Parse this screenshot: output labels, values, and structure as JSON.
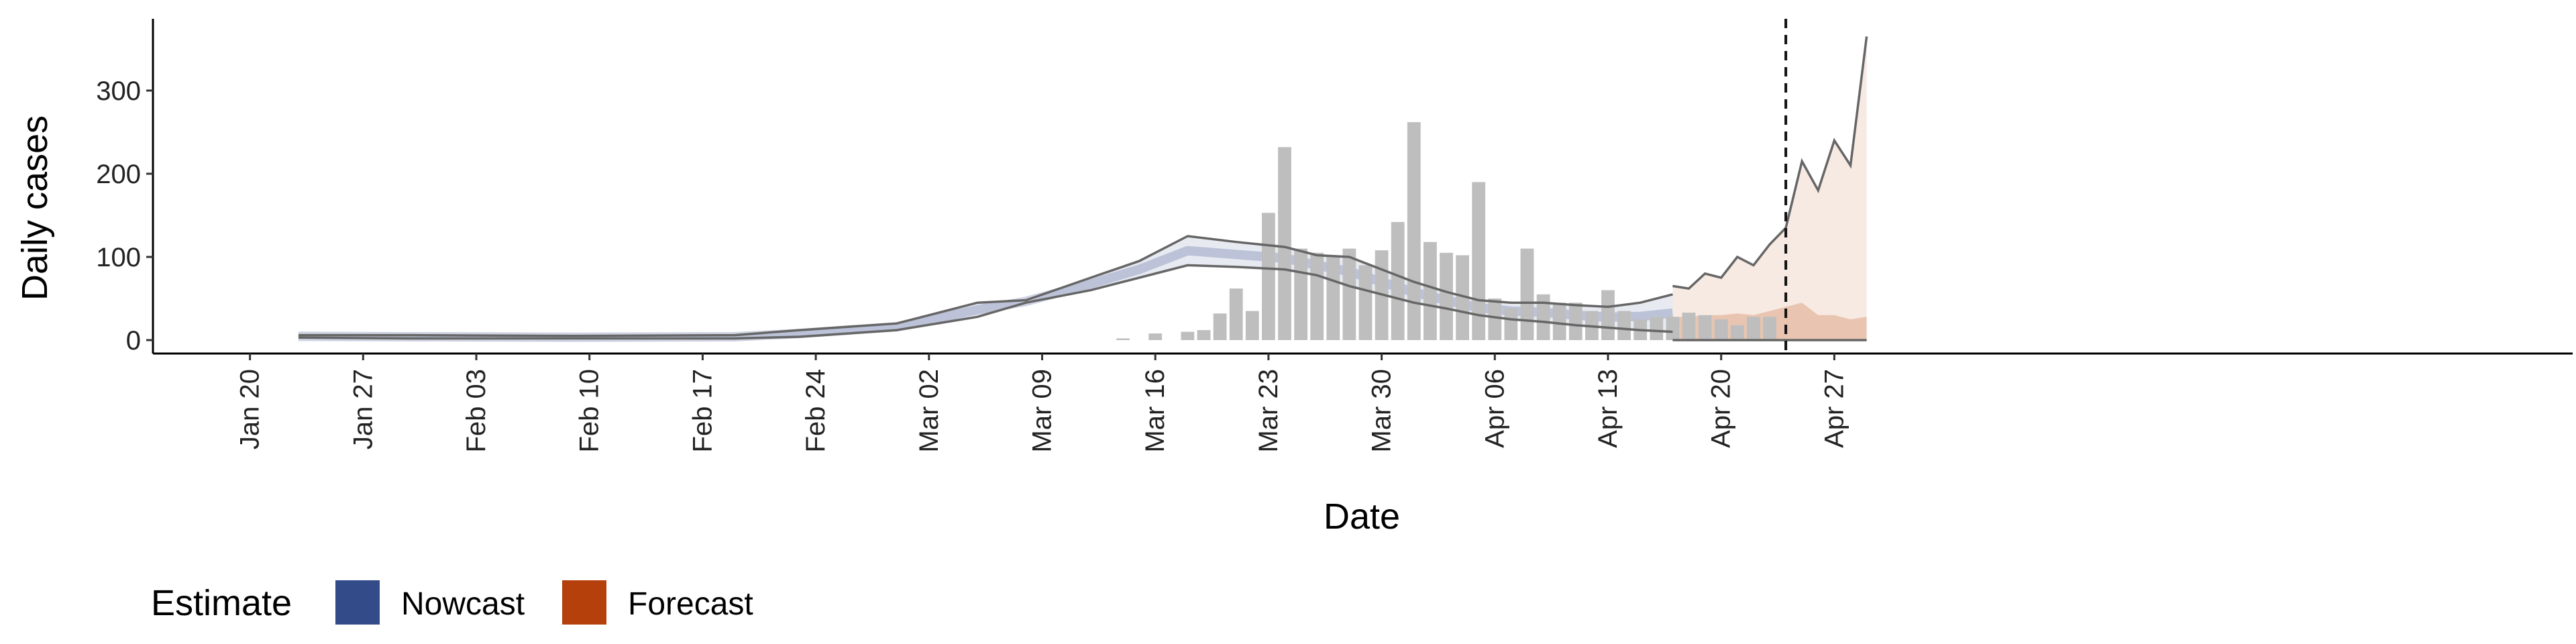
{
  "chart_data": {
    "type": "bar",
    "xlabel": "Date",
    "ylabel": "Daily cases",
    "x_ticks": [
      "Jan 20",
      "Jan 27",
      "Feb 03",
      "Feb 10",
      "Feb 17",
      "Feb 24",
      "Mar 02",
      "Mar 09",
      "Mar 16",
      "Mar 23",
      "Mar 30",
      "Apr 06",
      "Apr 13",
      "Apr 20",
      "Apr 27"
    ],
    "y_ticks": [
      0,
      100,
      200,
      300
    ],
    "ylim": [
      -20,
      385
    ],
    "x_range_days": [
      -6,
      102
    ],
    "date_origin": "Jan 20",
    "grid": false,
    "legend": {
      "title": "Estimate",
      "position": "bottom-left",
      "items": [
        {
          "label": "Nowcast",
          "color": "#344b8a"
        },
        {
          "label": "Forecast",
          "color": "#b5400c"
        }
      ]
    },
    "colors": {
      "bars": "#bebebe",
      "nowcast_band": "#3b4f8f",
      "forecast_band": "#c0561b",
      "outline": "#666666",
      "vline": "#111111"
    },
    "reference_line_day": 95,
    "observed_cases": {
      "day": [
        3,
        8,
        10,
        13,
        16,
        18,
        20,
        26,
        28,
        33,
        34,
        37,
        39,
        40,
        41,
        43,
        44,
        47,
        48,
        50,
        51,
        54,
        56,
        58,
        59,
        60,
        61,
        62,
        63,
        64,
        65,
        66,
        67,
        68,
        69,
        70,
        71,
        72,
        73,
        74,
        75,
        76,
        77,
        78,
        79,
        80,
        81,
        82,
        83,
        84,
        85,
        86,
        87,
        88,
        89,
        90,
        91,
        92,
        93,
        94
      ],
      "value": [
        4,
        5,
        3,
        4,
        4,
        7,
        3,
        3,
        3,
        2,
        2,
        2,
        4,
        4,
        4,
        3,
        3,
        4,
        2,
        4,
        2,
        4,
        3,
        1,
        2,
        3,
        2,
        2,
        2,
        2,
        1,
        3,
        3,
        6,
        2,
        2,
        3,
        2,
        5,
        4,
        5,
        8,
        6,
        2,
        2,
        4,
        2,
        2,
        4,
        3,
        2,
        8,
        1,
        2,
        8,
        10,
        4,
        2,
        12,
        6
      ]
    },
    "bars": {
      "day": [
        54,
        56,
        58,
        59,
        60,
        61,
        62,
        63,
        64,
        65,
        66,
        67,
        68,
        69,
        70,
        71,
        72,
        73,
        74,
        75,
        76,
        77,
        78,
        79,
        80,
        81,
        82,
        83,
        84,
        85,
        86,
        87,
        88,
        89,
        90,
        91,
        92,
        93,
        94
      ],
      "value": [
        2,
        8,
        10,
        12,
        32,
        62,
        35,
        153,
        232,
        110,
        105,
        102,
        110,
        90,
        108,
        142,
        262,
        118,
        105,
        102,
        190,
        50,
        38,
        110,
        55,
        45,
        45,
        35,
        60,
        35,
        25,
        28,
        28,
        33,
        30,
        25,
        18,
        28,
        28
      ]
    },
    "nowcast": {
      "day": [
        3,
        10,
        20,
        30,
        34,
        40,
        45,
        48,
        52,
        55,
        58,
        61,
        64,
        66,
        68,
        70,
        72,
        74,
        76,
        78,
        80,
        82,
        84,
        86,
        88
      ],
      "upper": [
        6,
        6,
        5,
        6,
        12,
        20,
        45,
        48,
        75,
        95,
        125,
        118,
        112,
        102,
        100,
        85,
        70,
        58,
        48,
        45,
        45,
        42,
        40,
        45,
        55
      ],
      "lower": [
        3,
        2,
        2,
        2,
        4,
        12,
        28,
        45,
        60,
        75,
        90,
        88,
        85,
        78,
        65,
        55,
        45,
        38,
        30,
        25,
        22,
        18,
        15,
        12,
        10
      ]
    },
    "forecast": {
      "day": [
        88,
        89,
        90,
        91,
        92,
        93,
        94,
        95,
        96,
        97,
        98,
        99,
        100
      ],
      "upper": [
        65,
        62,
        80,
        75,
        100,
        90,
        115,
        135,
        215,
        180,
        240,
        210,
        365
      ],
      "lower": [
        0,
        0,
        0,
        0,
        0,
        0,
        0,
        0,
        0,
        0,
        0,
        0,
        0
      ],
      "median": [
        28,
        28,
        30,
        30,
        32,
        30,
        35,
        40,
        45,
        30,
        30,
        25,
        28
      ]
    }
  }
}
